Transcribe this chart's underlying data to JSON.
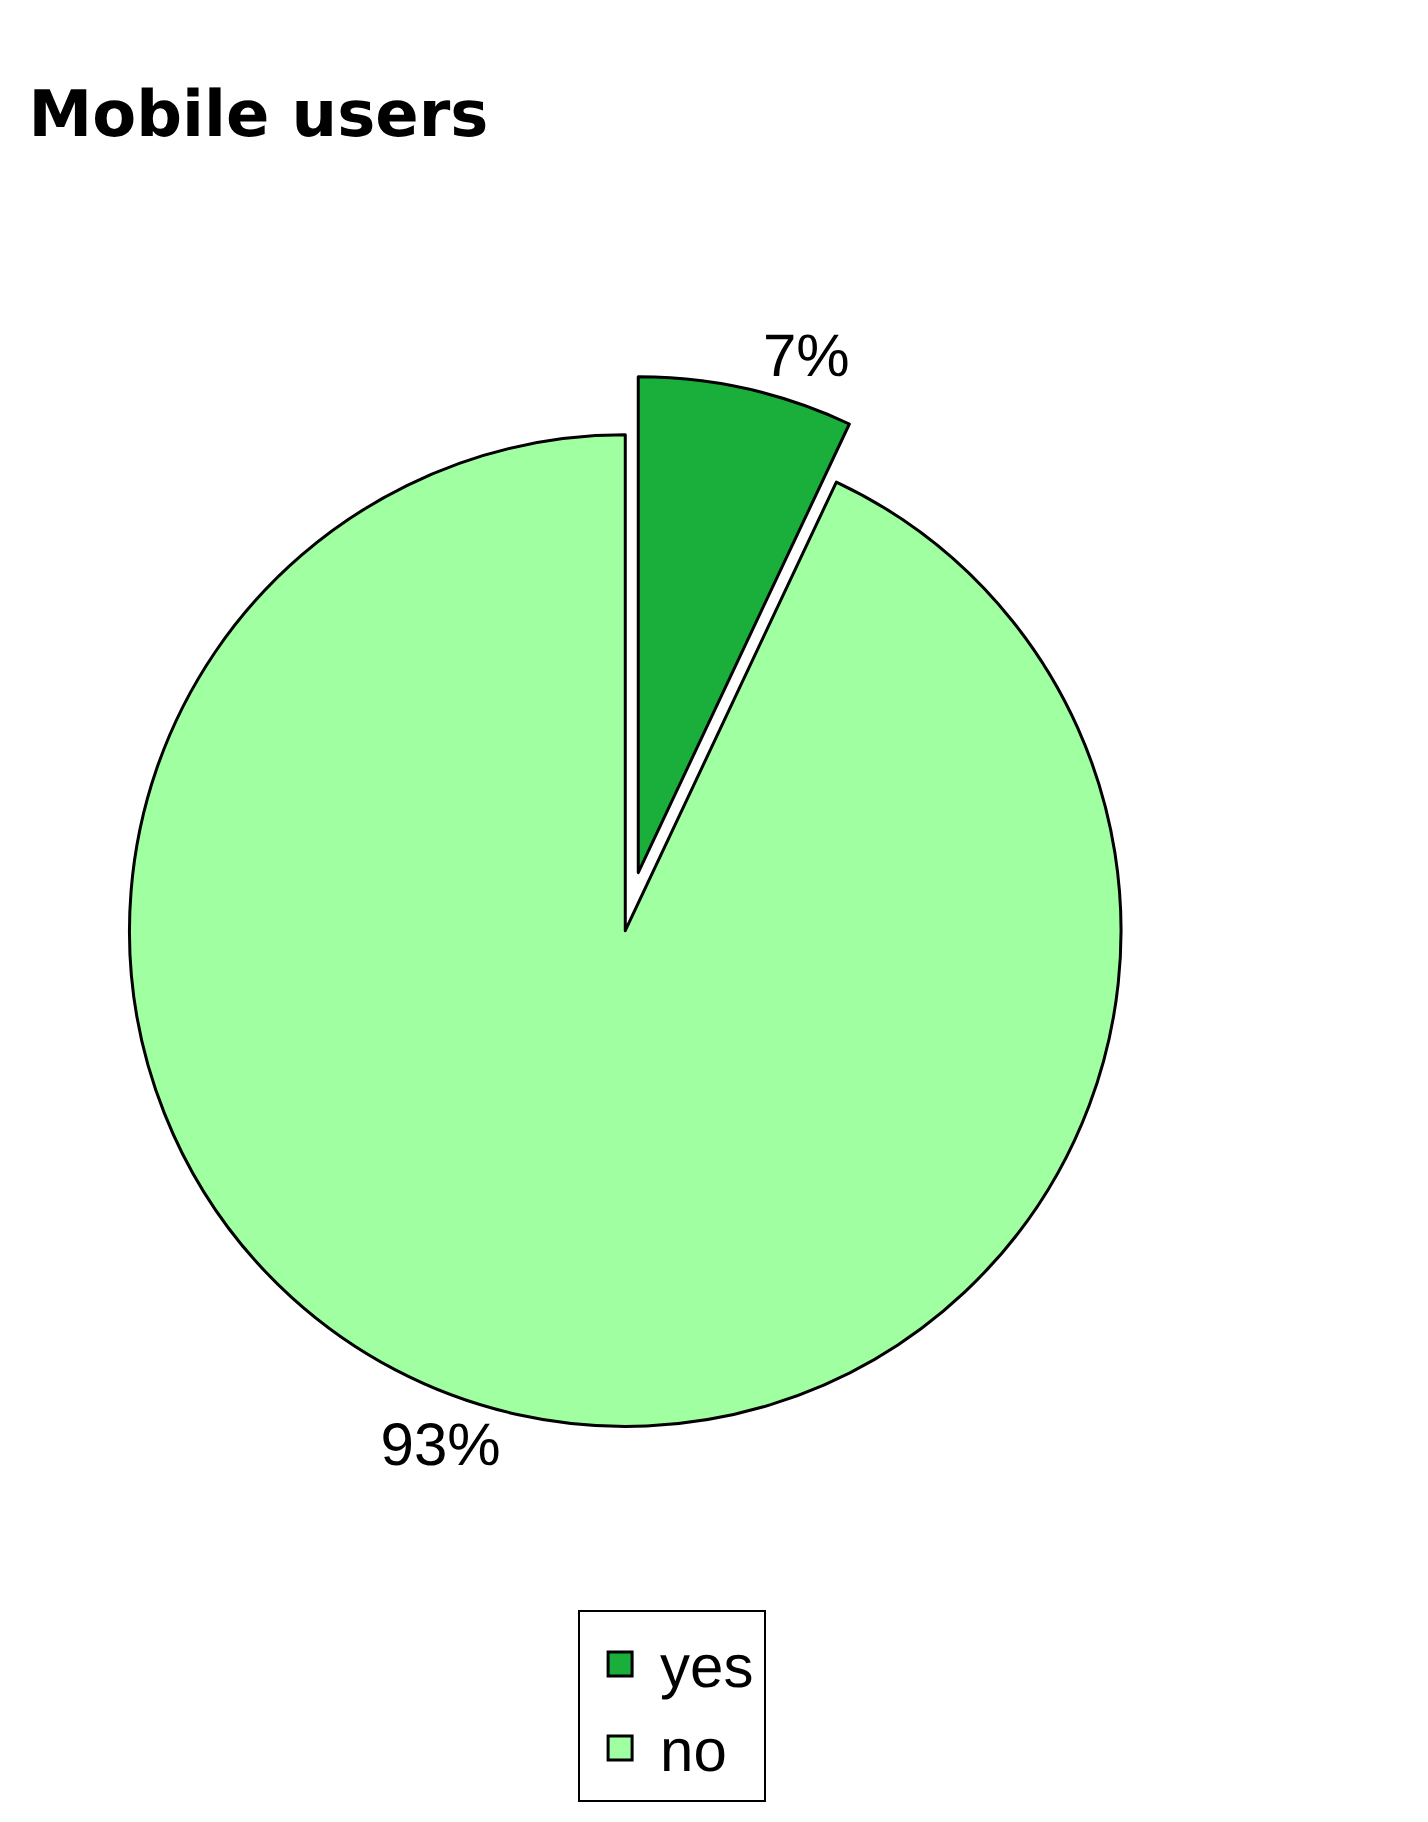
{
  "chart_data": {
    "type": "pie",
    "title": "Mobile users",
    "categories": [
      "yes",
      "no"
    ],
    "values": [
      7,
      93
    ],
    "colors": [
      "#1aaf3a",
      "#a0ffa0"
    ],
    "value_labels": [
      "7%",
      "93%"
    ],
    "legend": "bottom"
  }
}
